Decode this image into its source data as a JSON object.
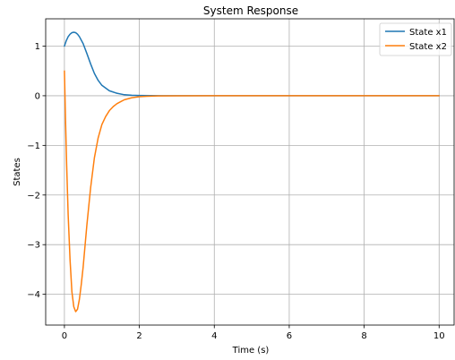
{
  "chart_data": {
    "type": "line",
    "title": "System Response",
    "xlabel": "Time (s)",
    "ylabel": "States",
    "xlim": [
      -0.5,
      10.4
    ],
    "ylim": [
      -4.62,
      1.55
    ],
    "xticks": [
      0,
      2,
      4,
      6,
      8,
      10
    ],
    "xtick_labels": [
      "0",
      "2",
      "4",
      "6",
      "8",
      "10"
    ],
    "yticks": [
      1,
      0,
      -1,
      -2,
      -3,
      -4
    ],
    "ytick_labels": [
      "1",
      "0",
      "−1",
      "−2",
      "−3",
      "−4"
    ],
    "grid": true,
    "legend_position": "top-right",
    "series": [
      {
        "name": "State x1",
        "color": "#1f77b4",
        "x": [
          0,
          0.05,
          0.1,
          0.15,
          0.2,
          0.25,
          0.3,
          0.35,
          0.4,
          0.5,
          0.6,
          0.7,
          0.8,
          0.9,
          1.0,
          1.2,
          1.4,
          1.6,
          1.8,
          2.0,
          2.3,
          2.6,
          3.0,
          4.0,
          6.0,
          8.0,
          10.0
        ],
        "y": [
          1.0,
          1.11,
          1.19,
          1.24,
          1.27,
          1.28,
          1.27,
          1.24,
          1.19,
          1.05,
          0.85,
          0.64,
          0.45,
          0.31,
          0.21,
          0.1,
          0.05,
          0.02,
          0.01,
          0.005,
          0.002,
          0.001,
          0.0,
          0.0,
          0.0,
          0.0,
          0.0
        ]
      },
      {
        "name": "State x2",
        "color": "#ff7f0e",
        "x": [
          0,
          0.03,
          0.06,
          0.1,
          0.15,
          0.2,
          0.25,
          0.3,
          0.35,
          0.4,
          0.45,
          0.5,
          0.6,
          0.7,
          0.8,
          0.9,
          1.0,
          1.1,
          1.2,
          1.3,
          1.4,
          1.5,
          1.6,
          1.8,
          2.0,
          2.2,
          2.5,
          3.0,
          4.0,
          6.0,
          8.0,
          10.0
        ],
        "y": [
          0.5,
          -0.5,
          -1.4,
          -2.4,
          -3.3,
          -3.95,
          -4.25,
          -4.35,
          -4.3,
          -4.1,
          -3.8,
          -3.45,
          -2.6,
          -1.85,
          -1.25,
          -0.85,
          -0.58,
          -0.42,
          -0.3,
          -0.22,
          -0.16,
          -0.12,
          -0.08,
          -0.04,
          -0.02,
          -0.01,
          -0.004,
          -0.001,
          0.0,
          0.0,
          0.0,
          0.0
        ]
      }
    ]
  }
}
